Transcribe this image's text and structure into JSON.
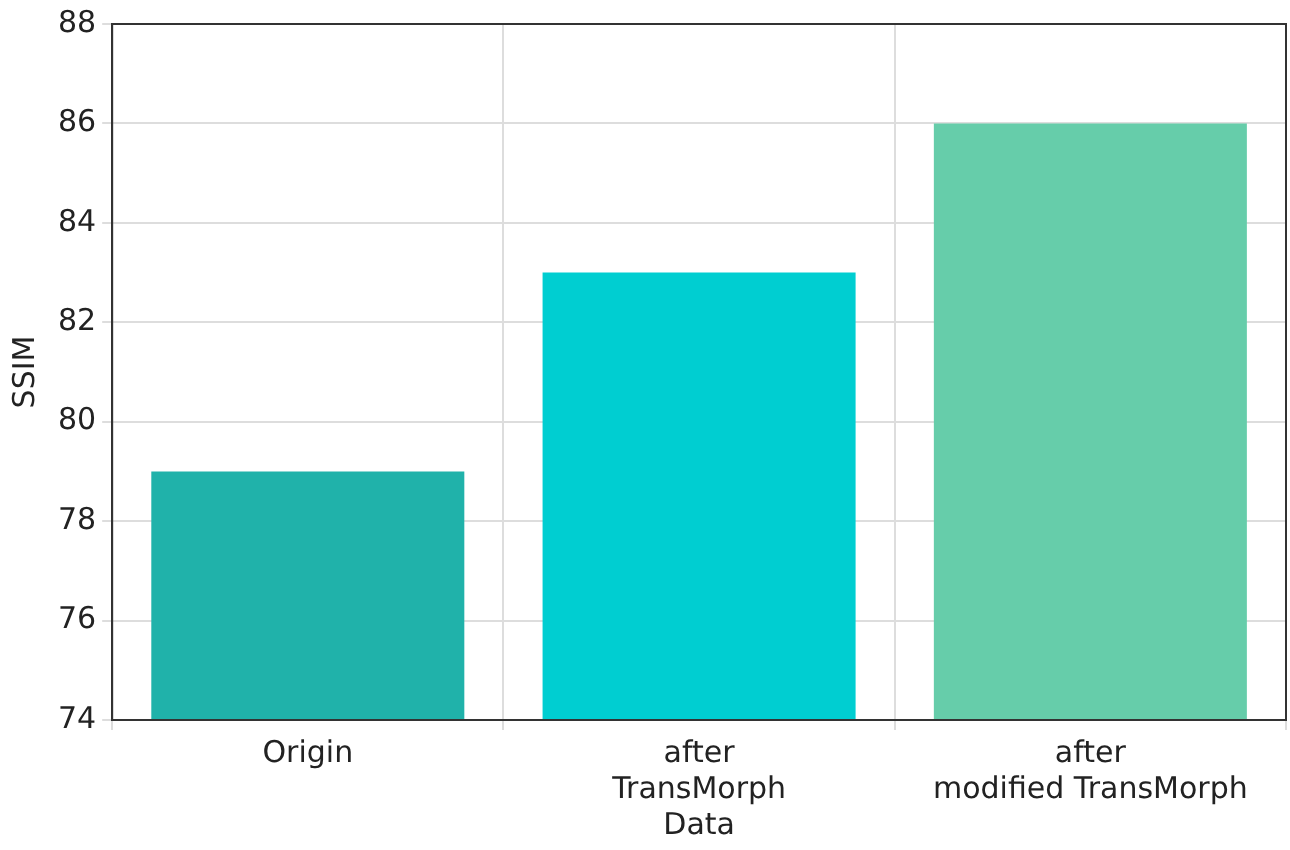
{
  "chart_data": {
    "type": "bar",
    "ylabel": "SSIM",
    "categories": [
      "Origin",
      "after\nTransMorph\nData",
      "after\nmodified TransMorph"
    ],
    "values": [
      79,
      83,
      86
    ],
    "colors": [
      "#20b2aa",
      "#00ced1",
      "#66cdaa"
    ],
    "ylim": [
      74,
      88
    ],
    "yticks": [
      74,
      76,
      78,
      80,
      82,
      84,
      86,
      88
    ],
    "grid": true,
    "legend": false
  }
}
